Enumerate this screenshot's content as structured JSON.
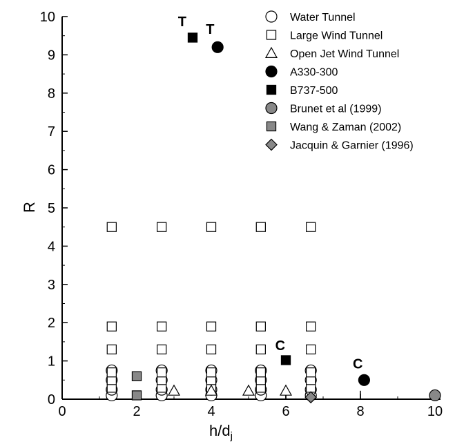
{
  "chart_data": {
    "type": "scatter",
    "xlabel": "h/d",
    "xlabel_subscript": "j",
    "ylabel": "R",
    "xlim": [
      0,
      10
    ],
    "ylim": [
      0,
      10
    ],
    "x_ticks": [
      0,
      2,
      4,
      6,
      8,
      10
    ],
    "y_ticks": [
      0,
      1,
      2,
      3,
      4,
      5,
      6,
      7,
      8,
      9,
      10
    ],
    "legend_position": "top-right",
    "grid": false,
    "series": [
      {
        "name": "Water Tunnel",
        "marker": "circle-open",
        "points": [
          [
            1.33,
            0.1
          ],
          [
            1.33,
            0.25
          ],
          [
            1.33,
            0.5
          ],
          [
            1.33,
            0.75
          ],
          [
            2.67,
            0.1
          ],
          [
            2.67,
            0.25
          ],
          [
            2.67,
            0.5
          ],
          [
            2.67,
            0.75
          ],
          [
            4.0,
            0.1
          ],
          [
            4.0,
            0.25
          ],
          [
            4.0,
            0.5
          ],
          [
            4.0,
            0.75
          ],
          [
            5.33,
            0.1
          ],
          [
            5.33,
            0.25
          ],
          [
            5.33,
            0.5
          ],
          [
            5.33,
            0.75
          ],
          [
            6.67,
            0.1
          ],
          [
            6.67,
            0.25
          ],
          [
            6.67,
            0.5
          ],
          [
            6.67,
            0.75
          ]
        ]
      },
      {
        "name": "Large Wind Tunnel",
        "marker": "square-open",
        "points": [
          [
            1.33,
            0.3
          ],
          [
            1.33,
            0.5
          ],
          [
            1.33,
            0.7
          ],
          [
            1.33,
            1.3
          ],
          [
            1.33,
            1.9
          ],
          [
            1.33,
            4.5
          ],
          [
            2.67,
            0.3
          ],
          [
            2.67,
            0.5
          ],
          [
            2.67,
            0.7
          ],
          [
            2.67,
            1.3
          ],
          [
            2.67,
            1.9
          ],
          [
            2.67,
            4.5
          ],
          [
            4.0,
            0.3
          ],
          [
            4.0,
            0.5
          ],
          [
            4.0,
            0.7
          ],
          [
            4.0,
            1.3
          ],
          [
            4.0,
            1.9
          ],
          [
            4.0,
            4.5
          ],
          [
            5.33,
            0.3
          ],
          [
            5.33,
            0.5
          ],
          [
            5.33,
            0.7
          ],
          [
            5.33,
            1.3
          ],
          [
            5.33,
            1.9
          ],
          [
            5.33,
            4.5
          ],
          [
            6.67,
            0.3
          ],
          [
            6.67,
            0.5
          ],
          [
            6.67,
            0.7
          ],
          [
            6.67,
            1.3
          ],
          [
            6.67,
            1.9
          ],
          [
            6.67,
            4.5
          ]
        ]
      },
      {
        "name": "Open Jet Wind Tunnel",
        "marker": "triangle-open",
        "points": [
          [
            3.0,
            0.22
          ],
          [
            4.0,
            0.22
          ],
          [
            5.0,
            0.22
          ],
          [
            6.0,
            0.22
          ]
        ]
      },
      {
        "name": "A330-300",
        "marker": "circle-filled",
        "color": "#000000",
        "points": [
          [
            4.17,
            9.2
          ],
          [
            8.1,
            0.5
          ]
        ]
      },
      {
        "name": "B737-500",
        "marker": "square-filled",
        "color": "#000000",
        "points": [
          [
            3.5,
            9.45
          ],
          [
            6.0,
            1.02
          ]
        ]
      },
      {
        "name": "Brunet et al (1999)",
        "marker": "circle-filled",
        "color": "#888888",
        "points": [
          [
            10.0,
            0.1
          ]
        ]
      },
      {
        "name": "Wang & Zaman (2002)",
        "marker": "square-filled",
        "color": "#888888",
        "points": [
          [
            2.0,
            0.6
          ],
          [
            2.0,
            0.1
          ]
        ]
      },
      {
        "name": "Jacquin & Garnier (1996)",
        "marker": "diamond-filled",
        "color": "#888888",
        "points": [
          [
            6.67,
            0.05
          ]
        ]
      }
    ],
    "annotations": [
      {
        "text": "T",
        "x": 3.22,
        "y": 9.75
      },
      {
        "text": "T",
        "x": 3.97,
        "y": 9.55
      },
      {
        "text": "C",
        "x": 5.85,
        "y": 1.28
      },
      {
        "text": "C",
        "x": 7.93,
        "y": 0.8
      }
    ],
    "error_bars": [
      {
        "x": 4.0,
        "y0": 0.0,
        "y1": 0.25
      },
      {
        "x": 6.0,
        "y0": 0.0,
        "y1": 0.25
      },
      {
        "x": 8.0,
        "y0": 0.0,
        "y1": 0.22
      },
      {
        "x": 10.0,
        "y0": 0.0,
        "y1": 0.2
      }
    ]
  }
}
